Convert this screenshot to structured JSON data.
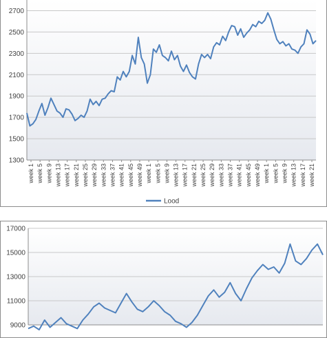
{
  "chart_data": [
    {
      "type": "line",
      "ylim": [
        1300,
        2800
      ],
      "yticks": [
        1300,
        1500,
        1700,
        1900,
        2100,
        2300,
        2500,
        2700
      ],
      "grid": true,
      "legend_position": "bottom",
      "series": [
        {
          "name": "Lood",
          "color": "#4f81bd",
          "points": [
            [
              0,
              1740
            ],
            [
              1,
              1620
            ],
            [
              2,
              1640
            ],
            [
              3,
              1680
            ],
            [
              4,
              1760
            ],
            [
              5,
              1830
            ],
            [
              6,
              1720
            ],
            [
              7,
              1790
            ],
            [
              8,
              1880
            ],
            [
              9,
              1820
            ],
            [
              10,
              1760
            ],
            [
              11,
              1740
            ],
            [
              12,
              1700
            ],
            [
              13,
              1780
            ],
            [
              14,
              1770
            ],
            [
              15,
              1730
            ],
            [
              16,
              1670
            ],
            [
              17,
              1690
            ],
            [
              18,
              1720
            ],
            [
              19,
              1700
            ],
            [
              20,
              1760
            ],
            [
              21,
              1870
            ],
            [
              22,
              1820
            ],
            [
              23,
              1850
            ],
            [
              24,
              1810
            ],
            [
              25,
              1870
            ],
            [
              26,
              1880
            ],
            [
              27,
              1920
            ],
            [
              28,
              1950
            ],
            [
              29,
              1940
            ],
            [
              30,
              2080
            ],
            [
              31,
              2050
            ],
            [
              32,
              2130
            ],
            [
              33,
              2080
            ],
            [
              34,
              2130
            ],
            [
              35,
              2280
            ],
            [
              36,
              2200
            ],
            [
              37,
              2450
            ],
            [
              38,
              2260
            ],
            [
              39,
              2200
            ],
            [
              40,
              2020
            ],
            [
              41,
              2100
            ],
            [
              42,
              2340
            ],
            [
              43,
              2310
            ],
            [
              44,
              2380
            ],
            [
              45,
              2280
            ],
            [
              46,
              2260
            ],
            [
              47,
              2230
            ],
            [
              48,
              2320
            ],
            [
              49,
              2240
            ],
            [
              50,
              2280
            ],
            [
              51,
              2180
            ],
            [
              52,
              2130
            ],
            [
              53,
              2190
            ],
            [
              54,
              2120
            ],
            [
              55,
              2080
            ],
            [
              56,
              2060
            ],
            [
              57,
              2200
            ],
            [
              58,
              2290
            ],
            [
              59,
              2260
            ],
            [
              60,
              2290
            ],
            [
              61,
              2250
            ],
            [
              62,
              2360
            ],
            [
              63,
              2400
            ],
            [
              64,
              2380
            ],
            [
              65,
              2460
            ],
            [
              66,
              2420
            ],
            [
              67,
              2500
            ],
            [
              68,
              2560
            ],
            [
              69,
              2550
            ],
            [
              70,
              2470
            ],
            [
              71,
              2530
            ],
            [
              72,
              2450
            ],
            [
              73,
              2490
            ],
            [
              74,
              2520
            ],
            [
              75,
              2570
            ],
            [
              76,
              2550
            ],
            [
              77,
              2600
            ],
            [
              78,
              2580
            ],
            [
              79,
              2610
            ],
            [
              80,
              2680
            ],
            [
              81,
              2620
            ],
            [
              82,
              2520
            ],
            [
              83,
              2430
            ],
            [
              84,
              2390
            ],
            [
              85,
              2410
            ],
            [
              86,
              2370
            ],
            [
              87,
              2390
            ],
            [
              88,
              2340
            ],
            [
              89,
              2330
            ],
            [
              90,
              2300
            ],
            [
              91,
              2360
            ],
            [
              92,
              2390
            ],
            [
              93,
              2520
            ],
            [
              94,
              2480
            ],
            [
              95,
              2390
            ],
            [
              96,
              2420
            ]
          ]
        }
      ],
      "x_categories": [
        "week  1",
        "week  5",
        "week  9",
        "week 13",
        "week 17",
        "week 21",
        "week 25",
        "week 29",
        "week 33",
        "week 37",
        "week 41",
        "week 45",
        "week 49",
        "week  1",
        "week  5",
        "week  9",
        "week 13",
        "week 17",
        "week 21",
        "week 25",
        "week 29",
        "week 33",
        "week 37",
        "week 41",
        "week 45",
        "week 49",
        "week  1",
        "week  5",
        "week  9",
        "week 13",
        "week 17",
        "week 21"
      ]
    },
    {
      "type": "line",
      "ylim": [
        9000,
        17000
      ],
      "yticks": [
        9000,
        11000,
        13000,
        15000,
        17000
      ],
      "grid": true,
      "series": [
        {
          "color": "#4f81bd",
          "points": [
            [
              0,
              8700
            ],
            [
              2,
              8900
            ],
            [
              4,
              8600
            ],
            [
              6,
              9400
            ],
            [
              8,
              8800
            ],
            [
              10,
              9200
            ],
            [
              12,
              9600
            ],
            [
              14,
              9100
            ],
            [
              16,
              8900
            ],
            [
              18,
              8700
            ],
            [
              20,
              9400
            ],
            [
              22,
              9900
            ],
            [
              24,
              10500
            ],
            [
              26,
              10800
            ],
            [
              28,
              10400
            ],
            [
              30,
              10200
            ],
            [
              32,
              10000
            ],
            [
              34,
              10800
            ],
            [
              36,
              11600
            ],
            [
              38,
              10900
            ],
            [
              40,
              10300
            ],
            [
              42,
              10100
            ],
            [
              44,
              10500
            ],
            [
              46,
              11000
            ],
            [
              48,
              10600
            ],
            [
              50,
              10100
            ],
            [
              52,
              9800
            ],
            [
              54,
              9300
            ],
            [
              56,
              9100
            ],
            [
              58,
              8800
            ],
            [
              60,
              9200
            ],
            [
              62,
              9800
            ],
            [
              64,
              10600
            ],
            [
              66,
              11400
            ],
            [
              68,
              11900
            ],
            [
              70,
              11300
            ],
            [
              72,
              11700
            ],
            [
              74,
              12500
            ],
            [
              76,
              11600
            ],
            [
              78,
              11000
            ],
            [
              80,
              12000
            ],
            [
              82,
              12900
            ],
            [
              84,
              13500
            ],
            [
              86,
              14000
            ],
            [
              88,
              13600
            ],
            [
              90,
              13800
            ],
            [
              92,
              13300
            ],
            [
              94,
              14100
            ],
            [
              96,
              15700
            ],
            [
              98,
              14300
            ],
            [
              100,
              14000
            ],
            [
              102,
              14500
            ],
            [
              104,
              15200
            ],
            [
              106,
              15700
            ],
            [
              108,
              14800
            ]
          ]
        }
      ]
    }
  ]
}
